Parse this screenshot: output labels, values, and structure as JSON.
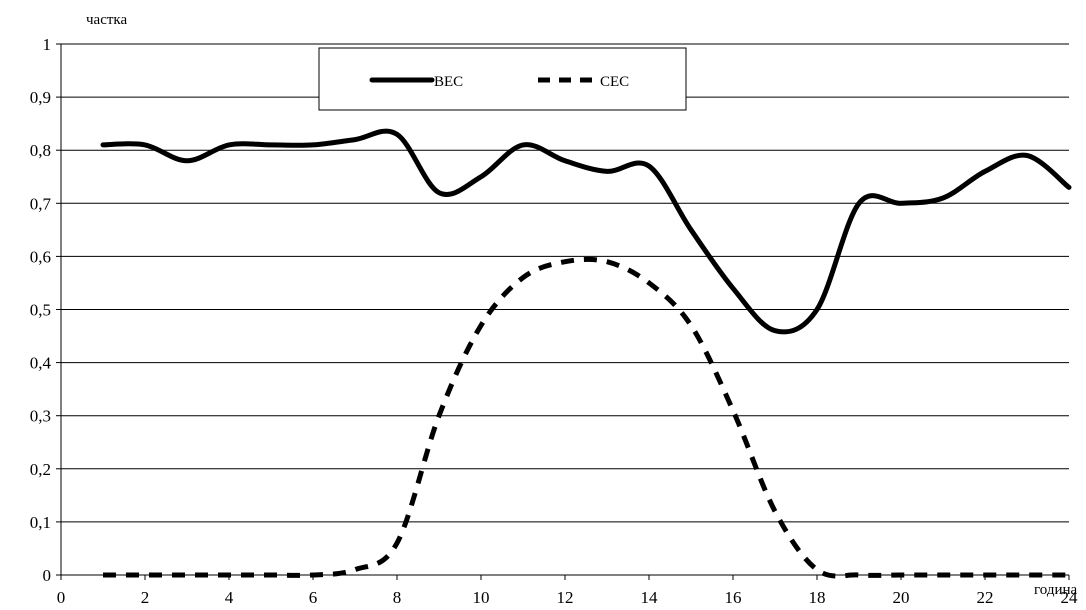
{
  "chart_data": {
    "type": "line",
    "title": "",
    "ylabel": "частка",
    "xlabel": "година",
    "xlim": [
      0,
      24
    ],
    "ylim": [
      0,
      1
    ],
    "x_ticks": [
      "0",
      "2",
      "4",
      "6",
      "8",
      "10",
      "12",
      "14",
      "16",
      "18",
      "20",
      "22",
      "24"
    ],
    "y_ticks": [
      "0",
      "0,1",
      "0,2",
      "0,3",
      "0,4",
      "0,5",
      "0,6",
      "0,7",
      "0,8",
      "0,9",
      "1"
    ],
    "grid": "horizontal",
    "legend_position": "top-center",
    "x": [
      1,
      2,
      3,
      4,
      5,
      6,
      7,
      8,
      9,
      10,
      11,
      12,
      13,
      14,
      15,
      16,
      17,
      18,
      19,
      20,
      21,
      22,
      23,
      24
    ],
    "series": [
      {
        "name": "ВЕС",
        "style": "solid",
        "color": "#000000",
        "values": [
          0.81,
          0.81,
          0.78,
          0.81,
          0.81,
          0.81,
          0.82,
          0.83,
          0.72,
          0.75,
          0.81,
          0.78,
          0.76,
          0.77,
          0.65,
          0.54,
          0.46,
          0.5,
          0.7,
          0.7,
          0.71,
          0.76,
          0.79,
          0.73
        ]
      },
      {
        "name": "СЕС",
        "style": "dashed",
        "color": "#000000",
        "values": [
          0,
          0,
          0,
          0,
          0,
          0,
          0.01,
          0.06,
          0.3,
          0.47,
          0.56,
          0.59,
          0.59,
          0.55,
          0.47,
          0.31,
          0.12,
          0.01,
          0,
          0,
          0,
          0,
          0,
          0
        ]
      }
    ]
  }
}
